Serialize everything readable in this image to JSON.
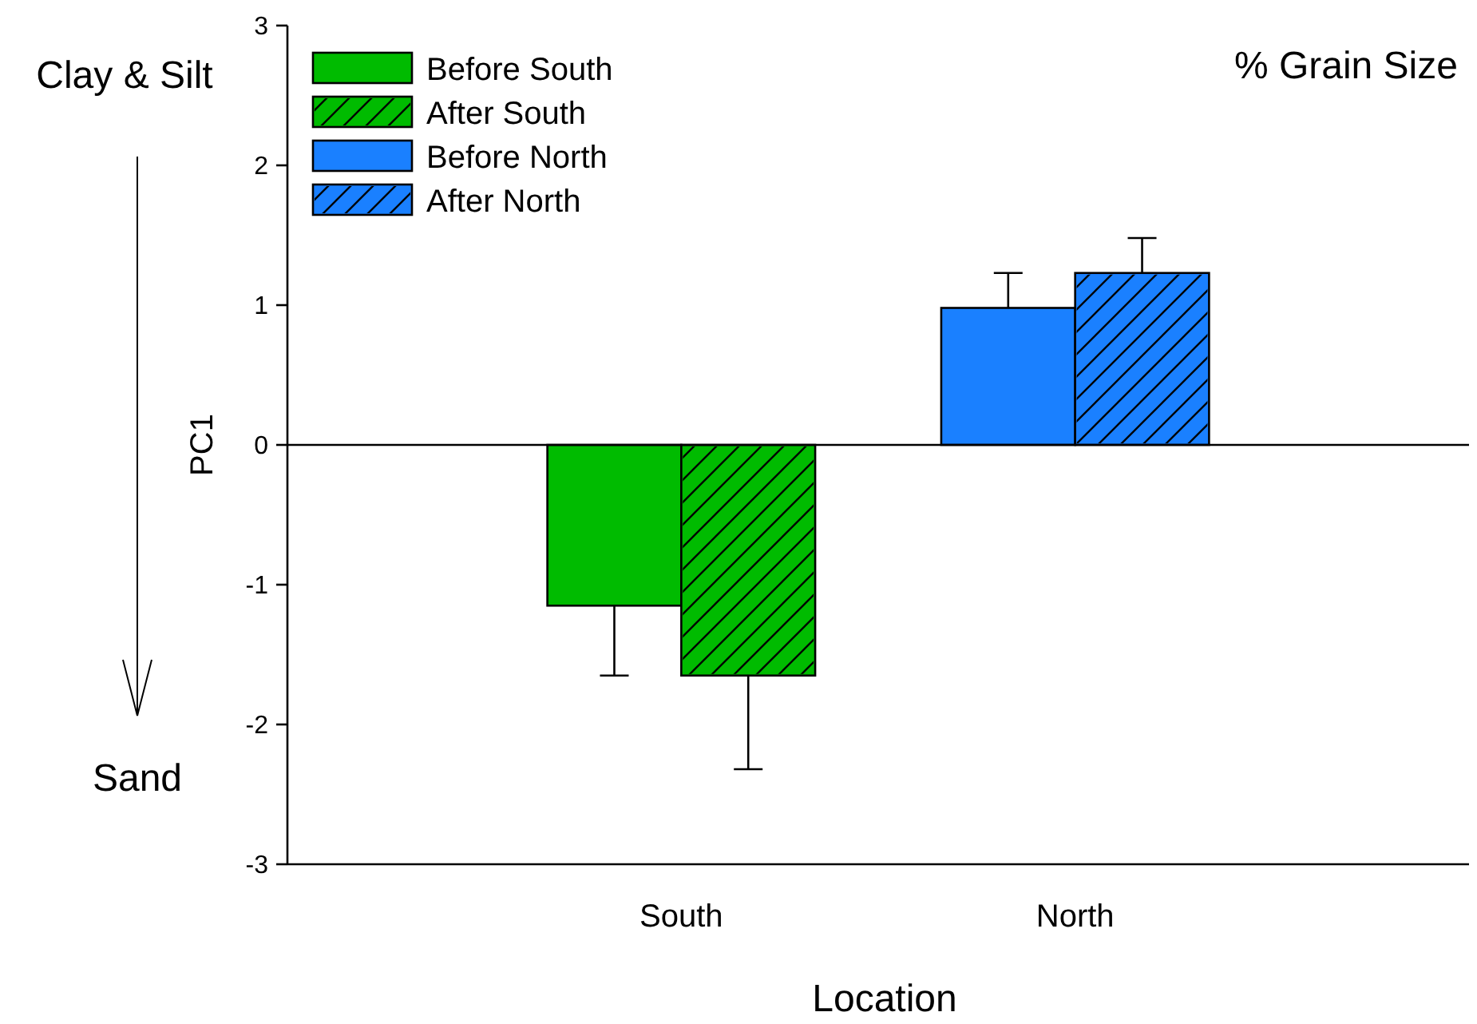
{
  "chart_data": {
    "type": "bar",
    "xlabel": "Location",
    "ylabel": "PC1",
    "categories": [
      "South",
      "North"
    ],
    "series": [
      {
        "name": "Before South",
        "color": "#00bb00",
        "values": [
          -1.15,
          null
        ],
        "errors": [
          [
            -1.65,
            -1.15
          ],
          null
        ]
      },
      {
        "name": "After South",
        "color": "#00bb00",
        "values": [
          -1.65,
          null
        ],
        "errors": [
          [
            -2.32,
            -1.65
          ],
          null
        ]
      },
      {
        "name": "Before North",
        "color": "#1a80ff",
        "values": [
          null,
          0.98
        ],
        "errors": [
          null,
          [
            0.98,
            1.23
          ]
        ]
      },
      {
        "name": "After North",
        "color": "#1a80ff",
        "values": [
          null,
          1.23
        ],
        "errors": [
          null,
          [
            1.23,
            1.48
          ]
        ]
      }
    ],
    "ylim": [
      -3,
      3
    ],
    "yticks": [
      -3,
      -2,
      -1,
      0,
      1,
      2,
      3
    ],
    "legend": "top left",
    "grid": false,
    "ref_lines": [
      {
        "axis": "y",
        "value": 0,
        "color": "#000000"
      }
    ],
    "annotations": [
      "% Grain Size",
      "Clay & Silt",
      "Sand"
    ]
  }
}
